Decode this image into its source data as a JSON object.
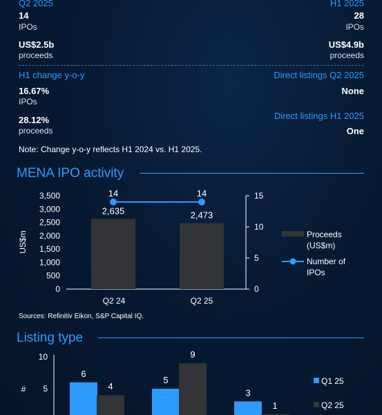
{
  "summary": {
    "left_top": {
      "title": "Q2 2025",
      "ipos_value": "14",
      "ipos_label": "IPOs",
      "proceeds_value": "US$2.5b",
      "proceeds_label": "proceeds"
    },
    "right_top": {
      "title": "H1 2025",
      "ipos_value": "28",
      "ipos_label": "IPOs",
      "proceeds_value": "US$4.9b",
      "proceeds_label": "proceeds"
    },
    "change": {
      "title": "H1 change y-o-y",
      "ipos_value": "16.67%",
      "ipos_label": "IPOs",
      "proceeds_value": "28.12%",
      "proceeds_label": "proceeds"
    },
    "direct_q2": {
      "title": "Direct listings Q2 2025",
      "value": "None"
    },
    "direct_h1": {
      "title": "Direct listings H1 2025",
      "value": "One"
    },
    "note": "Note: Change y-o-y reflects H1 2024 vs. H1 2025."
  },
  "colors": {
    "accent": "#2e9bff",
    "bar_dark": "#333437",
    "line": "#2e9bff"
  },
  "chart_data": [
    {
      "type": "bar",
      "title": "MENA IPO activity",
      "categories": [
        "Q2 24",
        "Q2 25"
      ],
      "series": [
        {
          "name": "Proceeds (US$m)",
          "type": "bar",
          "axis": "left",
          "values": [
            2635,
            2473
          ],
          "labels": [
            "2,635",
            "2,473"
          ]
        },
        {
          "name": "Number of IPOs",
          "type": "line",
          "axis": "right",
          "values": [
            14,
            14
          ],
          "labels": [
            "14",
            "14"
          ]
        }
      ],
      "ylabel": "US$m",
      "ylim": [
        0,
        3500
      ],
      "yticks": [
        "0",
        "500",
        "1,000",
        "1,500",
        "2,000",
        "2,500",
        "3,000",
        "3,500"
      ],
      "y2lim": [
        0,
        15
      ],
      "y2ticks": [
        "0",
        "5",
        "10",
        "15"
      ],
      "legend": {
        "position": "right",
        "proceeds": "Proceeds",
        "proceeds_unit": "(US$m)",
        "ipos": "Number of",
        "ipos2": "IPOs"
      },
      "source": "Sources: Refinitiv Eikon, S&P Capital IQ."
    },
    {
      "type": "bar",
      "title": "Listing type",
      "ylabel": "#",
      "ylim": [
        0,
        10
      ],
      "yticks": [
        "5",
        "10"
      ],
      "categories": [
        "",
        "",
        ""
      ],
      "series": [
        {
          "name": "Q1 25",
          "values": [
            6,
            5,
            3
          ]
        },
        {
          "name": "Q2 25",
          "values": [
            4,
            9,
            1
          ]
        }
      ],
      "legend": {
        "position": "right"
      }
    }
  ]
}
